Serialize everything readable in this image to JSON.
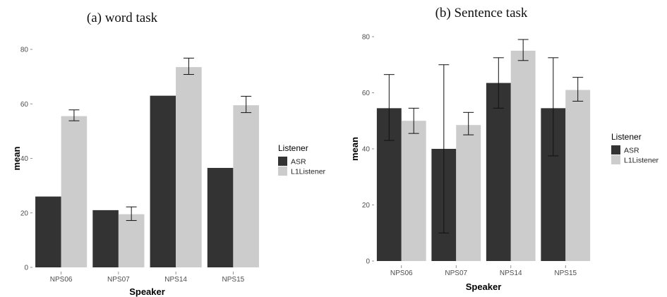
{
  "chart_data": [
    {
      "type": "bar",
      "title": "(a) word task",
      "xlabel": "Speaker",
      "ylabel": "mean",
      "categories": [
        "NPS06",
        "NPS07",
        "NPS14",
        "NPS15"
      ],
      "ylim": [
        0,
        80
      ],
      "yticks": [
        0,
        20,
        40,
        60,
        80
      ],
      "grid": false,
      "legend": {
        "title": "Listener",
        "position": "right"
      },
      "series": [
        {
          "name": "ASR",
          "color": "#333333",
          "values": [
            26,
            21,
            63,
            36.5
          ],
          "error_low": [
            null,
            null,
            null,
            null
          ],
          "error_high": [
            null,
            null,
            null,
            null
          ]
        },
        {
          "name": "L1Listener",
          "color": "#cccccc",
          "values": [
            55.5,
            19.5,
            73.5,
            59.5
          ],
          "error_low": [
            53.8,
            17.2,
            70.8,
            56.8
          ],
          "error_high": [
            57.8,
            22.2,
            76.8,
            62.8
          ]
        }
      ]
    },
    {
      "type": "bar",
      "title": "(b) Sentence task",
      "xlabel": "Speaker",
      "ylabel": "mean",
      "categories": [
        "NPS06",
        "NPS07",
        "NPS14",
        "NPS15"
      ],
      "ylim": [
        0,
        80
      ],
      "yticks": [
        0,
        20,
        40,
        60,
        80
      ],
      "grid": false,
      "legend": {
        "title": "Listener",
        "position": "right"
      },
      "series": [
        {
          "name": "ASR",
          "color": "#333333",
          "values": [
            54.5,
            40,
            63.5,
            54.5
          ],
          "error_low": [
            43,
            10,
            54.5,
            37.5
          ],
          "error_high": [
            66.5,
            70,
            72.5,
            72.5
          ]
        },
        {
          "name": "L1Listener",
          "color": "#cccccc",
          "values": [
            50,
            48.5,
            75,
            61
          ],
          "error_low": [
            45.5,
            45,
            71.5,
            57
          ],
          "error_high": [
            54.5,
            53,
            79,
            65.5
          ]
        }
      ]
    }
  ]
}
